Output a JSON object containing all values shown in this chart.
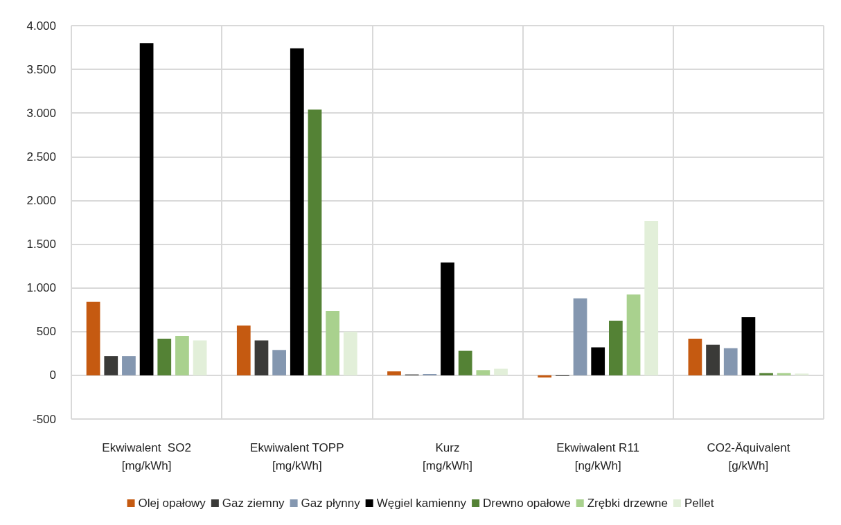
{
  "chart_data": {
    "type": "bar",
    "categories": [
      "Ekwiwalent  SO2\n[mg/kWh]",
      "Ekwiwalent TOPP\n[mg/kWh]",
      "Kurz\n[mg/kWh]",
      "Ekwiwalent R11\n[ng/kWh]",
      "CO2-Äquivalent\n[g/kWh]"
    ],
    "series": [
      {
        "name": "Olej opałowy",
        "color": "#c55a11",
        "values": [
          840,
          570,
          45,
          -25,
          420
        ]
      },
      {
        "name": "Gaz ziemny",
        "color": "#3a3a38",
        "values": [
          220,
          400,
          10,
          -8,
          350
        ]
      },
      {
        "name": "Gaz płynny",
        "color": "#8497b0",
        "values": [
          220,
          290,
          15,
          880,
          310
        ]
      },
      {
        "name": "Węgiel kamienny",
        "color": "#000000",
        "values": [
          3800,
          3740,
          1290,
          320,
          665
        ]
      },
      {
        "name": "Drewno opałowe",
        "color": "#548235",
        "values": [
          420,
          3040,
          280,
          625,
          25
        ]
      },
      {
        "name": "Zrębki drzewne",
        "color": "#a9d18e",
        "values": [
          450,
          735,
          60,
          925,
          25
        ]
      },
      {
        "name": "Pellet",
        "color": "#e2efd9",
        "values": [
          400,
          500,
          75,
          1765,
          20
        ]
      }
    ],
    "ylim": [
      -500,
      4000
    ],
    "yticks": [
      {
        "value": -500,
        "label": "-500"
      },
      {
        "value": 0,
        "label": "0"
      },
      {
        "value": 500,
        "label": "500"
      },
      {
        "value": 1000,
        "label": "1.000"
      },
      {
        "value": 1500,
        "label": "1.500"
      },
      {
        "value": 2000,
        "label": "2.000"
      },
      {
        "value": 2500,
        "label": "2.500"
      },
      {
        "value": 3000,
        "label": "3.000"
      },
      {
        "value": 3500,
        "label": "3.500"
      },
      {
        "value": 4000,
        "label": "4.000"
      }
    ],
    "grid": true,
    "legend": "bottom"
  }
}
